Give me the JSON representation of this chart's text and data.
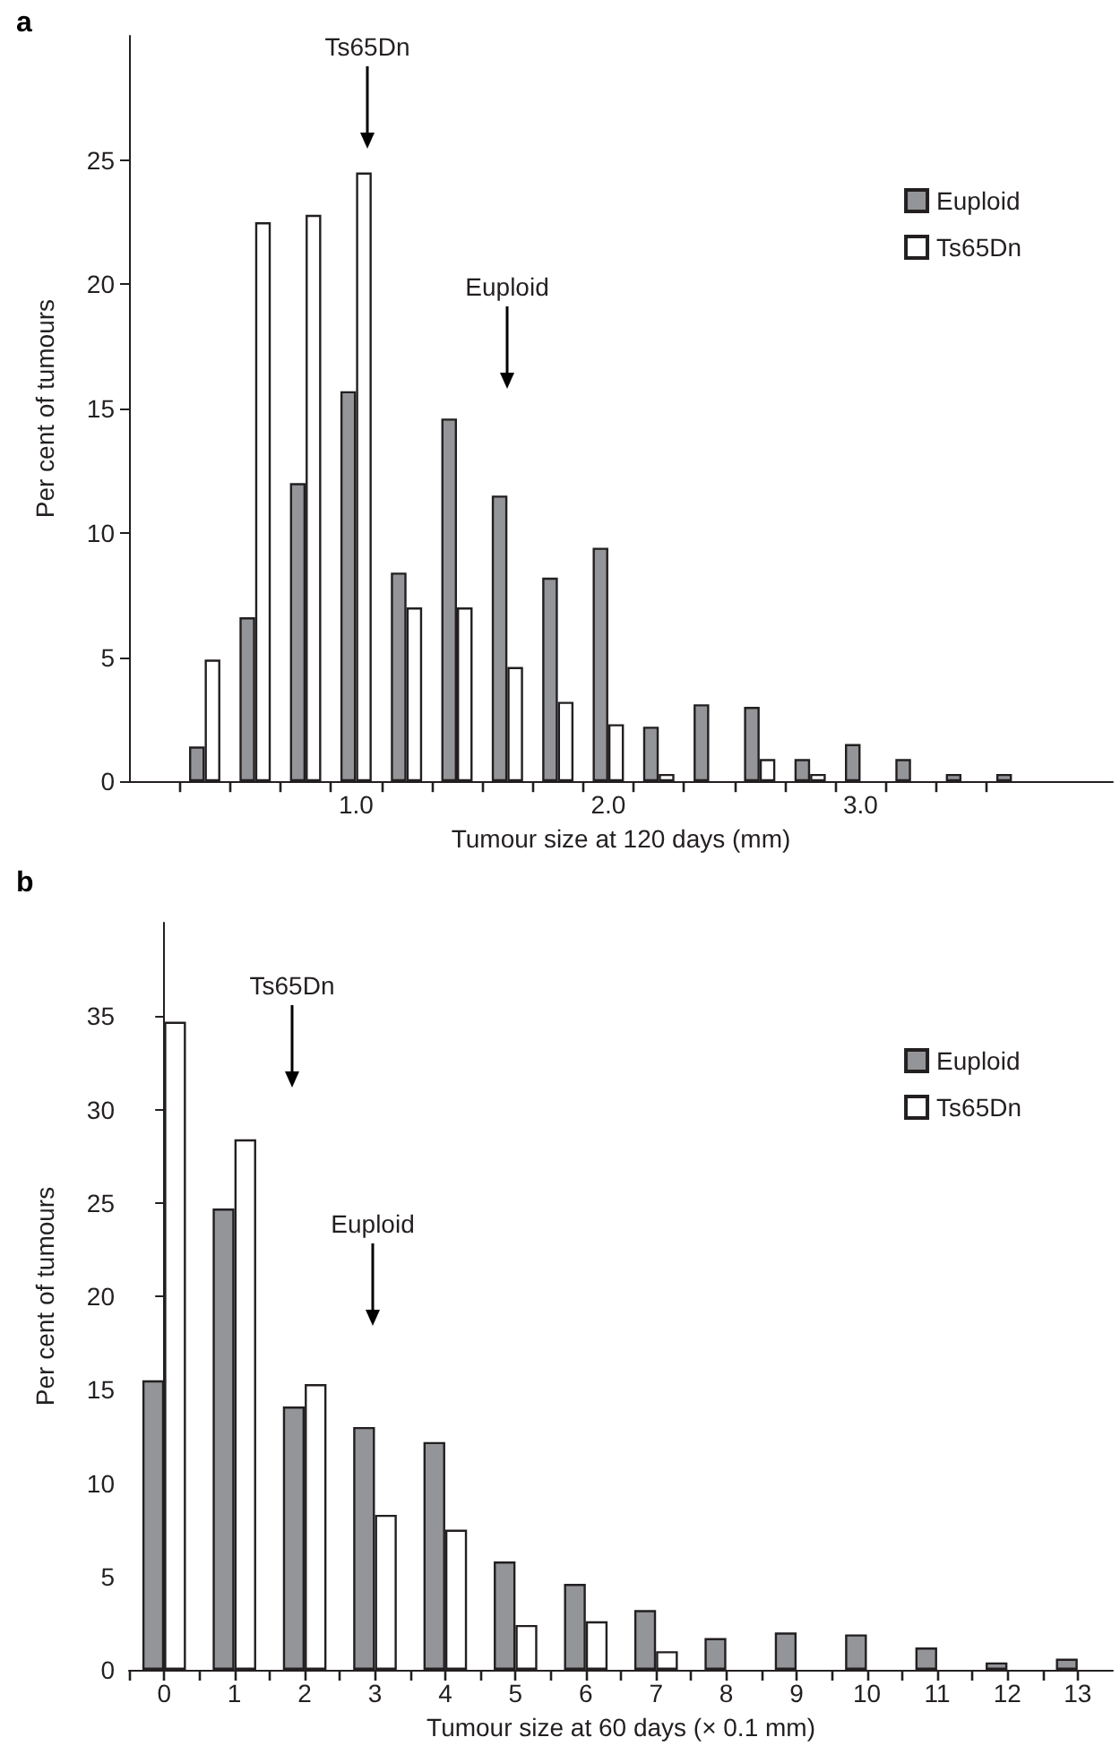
{
  "chart_data": [
    {
      "type": "bar",
      "title": "a",
      "xlabel": "Tumour size at 120 days (mm)",
      "ylabel": "Per cent of tumours",
      "x": [
        0.4,
        0.6,
        0.8,
        1.0,
        1.2,
        1.4,
        1.6,
        1.8,
        2.0,
        2.2,
        2.4,
        2.6,
        2.8,
        3.0,
        3.2,
        3.4,
        3.6
      ],
      "series": [
        {
          "name": "Euploid",
          "color": "#939598",
          "values": [
            1.4,
            6.6,
            12.0,
            15.7,
            8.4,
            14.6,
            11.5,
            8.2,
            9.4,
            2.2,
            3.1,
            3.0,
            0.9,
            1.5,
            0.9,
            0.3,
            0.3
          ]
        },
        {
          "name": "Ts65Dn",
          "color": "#ffffff",
          "values": [
            4.9,
            22.5,
            22.8,
            24.5,
            7.0,
            7.0,
            4.6,
            3.2,
            2.3,
            0.3,
            null,
            0.9,
            0.3,
            null,
            null,
            null,
            null
          ]
        }
      ],
      "xlim": [
        0.1,
        4.0
      ],
      "xticks": [
        {
          "value": 1.0,
          "label": "1.0"
        },
        {
          "value": 2.0,
          "label": "2.0"
        },
        {
          "value": 3.0,
          "label": "3.0"
        }
      ],
      "ylim": [
        0,
        30
      ],
      "yticks": [
        0,
        5,
        10,
        15,
        20,
        25
      ],
      "legend": "top right",
      "annotations": [
        "Ts65Dn",
        "Euploid"
      ]
    },
    {
      "type": "bar",
      "title": "b",
      "xlabel": "Tumour size at 60 days (× 0.1 mm)",
      "ylabel": "Per cent of tumours",
      "x": [
        0,
        1,
        2,
        3,
        4,
        5,
        6,
        7,
        8,
        9,
        10,
        11,
        12,
        13
      ],
      "series": [
        {
          "name": "Euploid",
          "color": "#939598",
          "values": [
            15.5,
            24.7,
            14.1,
            13.0,
            12.2,
            5.8,
            4.6,
            3.2,
            1.7,
            2.0,
            1.9,
            1.2,
            0.4,
            0.6
          ]
        },
        {
          "name": "Ts65Dn",
          "color": "#ffffff",
          "values": [
            34.7,
            28.4,
            15.3,
            8.3,
            7.5,
            2.4,
            2.6,
            1.0,
            null,
            null,
            null,
            null,
            null,
            null
          ]
        }
      ],
      "xlim": [
        -0.5,
        13.5
      ],
      "xticks": [
        {
          "value": -0.5,
          "label": null
        },
        0,
        {
          "value": 0.5,
          "label": null
        },
        1,
        {
          "value": 1.5,
          "label": null
        },
        2,
        {
          "value": 2.5,
          "label": null
        },
        3,
        {
          "value": 3.5,
          "label": null
        },
        4,
        {
          "value": 4.5,
          "label": null
        },
        5,
        {
          "value": 5.5,
          "label": null
        },
        6,
        {
          "value": 6.5,
          "label": null
        },
        7,
        {
          "value": 7.5,
          "label": null
        },
        8,
        {
          "value": 8.5,
          "label": null
        },
        9,
        {
          "value": 9.5,
          "label": null
        },
        10,
        {
          "value": 10.5,
          "label": null
        },
        11,
        {
          "value": 11.5,
          "label": null
        },
        12,
        {
          "value": 12.5,
          "label": null
        },
        13
      ],
      "ylim": [
        0,
        40
      ],
      "yticks": [
        0,
        5,
        10,
        15,
        20,
        25,
        30,
        35
      ],
      "legend": "top right",
      "annotations": [
        "Ts65Dn",
        "Euploid"
      ]
    }
  ]
}
